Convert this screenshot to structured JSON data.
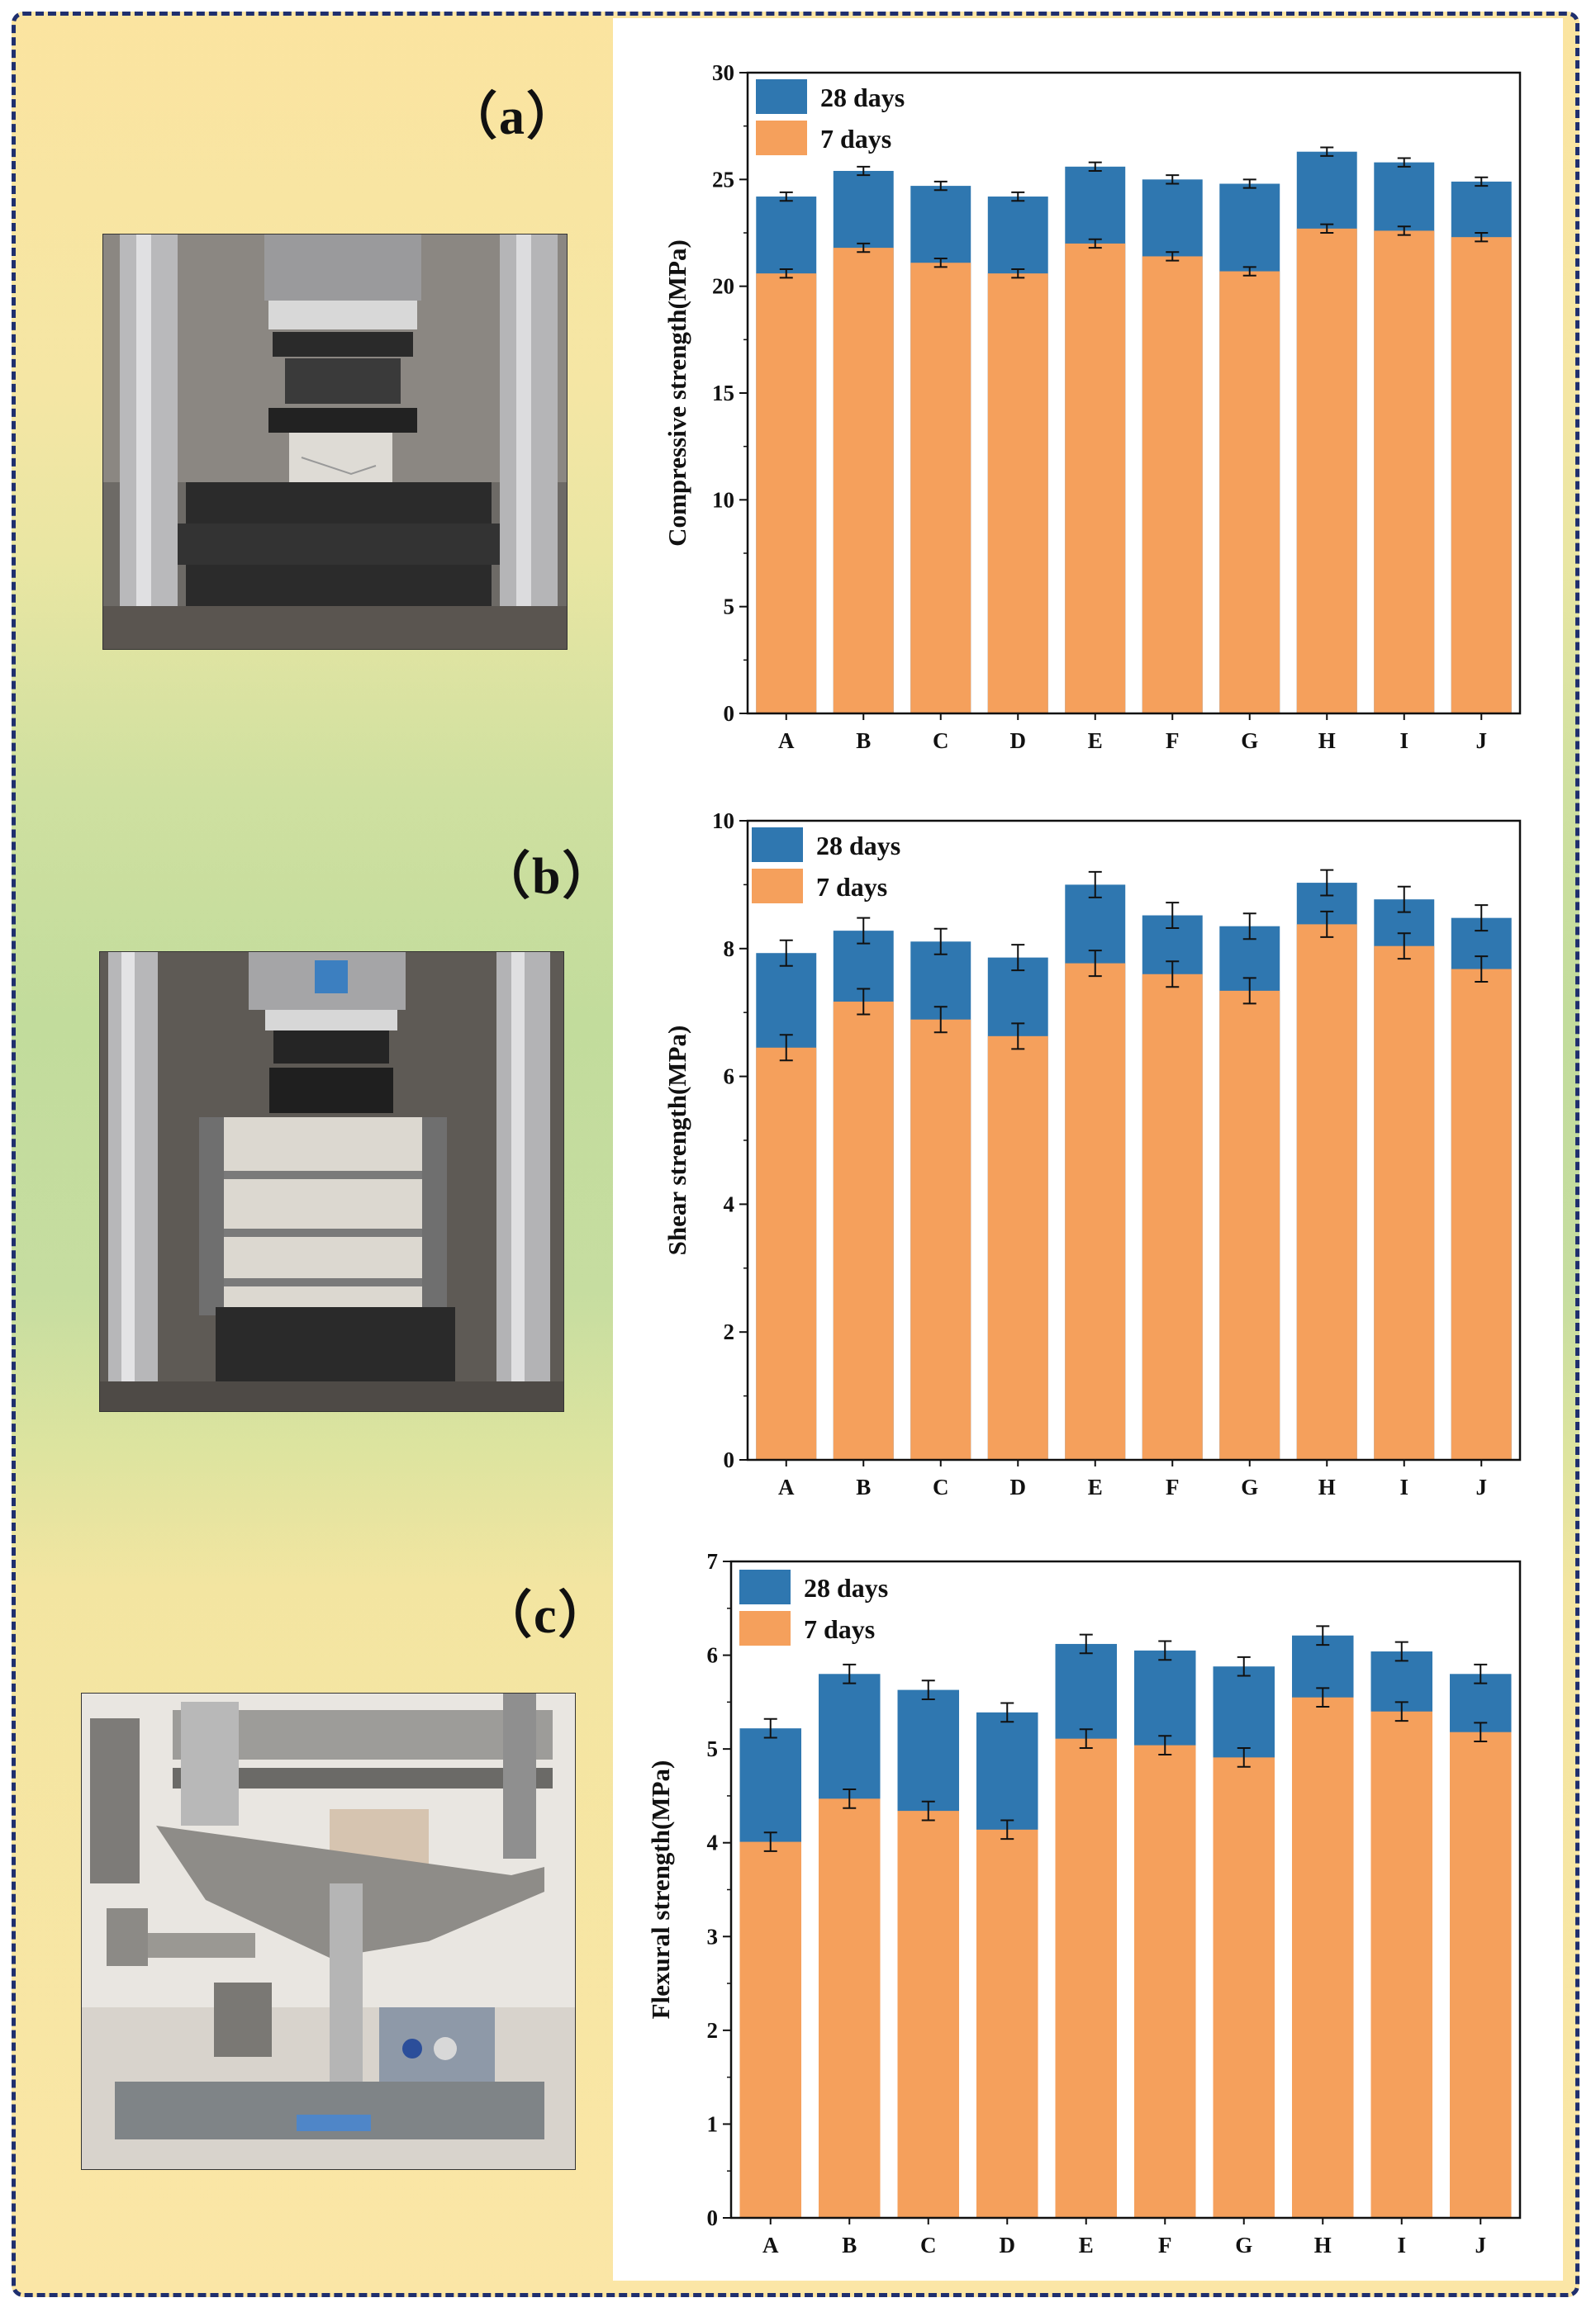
{
  "panels": [
    {
      "label": "（a）",
      "photo": "compressive-strength-test-machine"
    },
    {
      "label": "（b）",
      "photo": "shear-strength-test-machine"
    },
    {
      "label": "（c）",
      "photo": "flexural-strength-test-machine"
    }
  ],
  "colors": {
    "series_28d": "#2f77b0",
    "series_7d": "#f5a05c",
    "frame": "#1f2f6e"
  },
  "chart_data": [
    {
      "type": "bar",
      "title": "",
      "xlabel": "",
      "ylabel": "Compressive strength(MPa)",
      "categories": [
        "A",
        "B",
        "C",
        "D",
        "E",
        "F",
        "G",
        "H",
        "I",
        "J"
      ],
      "ylim": [
        0,
        30
      ],
      "yticks": [
        0,
        5,
        10,
        15,
        20,
        25,
        30
      ],
      "legend_position": "top-left",
      "series": [
        {
          "name": "28 days",
          "values": [
            24.2,
            25.4,
            24.7,
            24.2,
            25.6,
            25.0,
            24.8,
            26.3,
            25.8,
            24.9
          ],
          "errors": [
            0.2,
            0.2,
            0.2,
            0.2,
            0.2,
            0.2,
            0.2,
            0.2,
            0.2,
            0.2
          ]
        },
        {
          "name": "7  days",
          "values": [
            20.6,
            21.8,
            21.1,
            20.6,
            22.0,
            21.4,
            20.7,
            22.7,
            22.6,
            22.3
          ],
          "errors": [
            0.2,
            0.2,
            0.2,
            0.2,
            0.2,
            0.2,
            0.2,
            0.2,
            0.2,
            0.2
          ]
        }
      ]
    },
    {
      "type": "bar",
      "title": "",
      "xlabel": "",
      "ylabel": "Shear strength(MPa)",
      "categories": [
        "A",
        "B",
        "C",
        "D",
        "E",
        "F",
        "G",
        "H",
        "I",
        "J"
      ],
      "ylim": [
        0,
        10
      ],
      "yticks": [
        0,
        2,
        4,
        6,
        8,
        10
      ],
      "legend_position": "top-left",
      "series": [
        {
          "name": "28 days",
          "values": [
            7.93,
            8.28,
            8.11,
            7.86,
            9.0,
            8.52,
            8.35,
            9.03,
            8.77,
            8.48
          ],
          "errors": [
            0.2,
            0.2,
            0.2,
            0.2,
            0.2,
            0.2,
            0.2,
            0.2,
            0.2,
            0.2
          ]
        },
        {
          "name": "7 days",
          "values": [
            6.45,
            7.17,
            6.89,
            6.63,
            7.77,
            7.6,
            7.34,
            8.38,
            8.04,
            7.68
          ],
          "errors": [
            0.2,
            0.2,
            0.2,
            0.2,
            0.2,
            0.2,
            0.2,
            0.2,
            0.2,
            0.2
          ]
        }
      ]
    },
    {
      "type": "bar",
      "title": "",
      "xlabel": "",
      "ylabel": "Flexural strength(MPa)",
      "categories": [
        "A",
        "B",
        "C",
        "D",
        "E",
        "F",
        "G",
        "H",
        "I",
        "J"
      ],
      "ylim": [
        0,
        7
      ],
      "yticks": [
        0,
        1,
        2,
        3,
        4,
        5,
        6,
        7
      ],
      "legend_position": "top-left",
      "series": [
        {
          "name": "28 days",
          "values": [
            5.22,
            5.8,
            5.63,
            5.39,
            6.12,
            6.05,
            5.88,
            6.21,
            6.04,
            5.8
          ],
          "errors": [
            0.1,
            0.1,
            0.1,
            0.1,
            0.1,
            0.1,
            0.1,
            0.1,
            0.1,
            0.1
          ]
        },
        {
          "name": "7 days",
          "values": [
            4.01,
            4.47,
            4.34,
            4.14,
            5.11,
            5.04,
            4.91,
            5.55,
            5.4,
            5.18
          ],
          "errors": [
            0.1,
            0.1,
            0.1,
            0.1,
            0.1,
            0.1,
            0.1,
            0.1,
            0.1,
            0.1
          ]
        }
      ]
    }
  ]
}
